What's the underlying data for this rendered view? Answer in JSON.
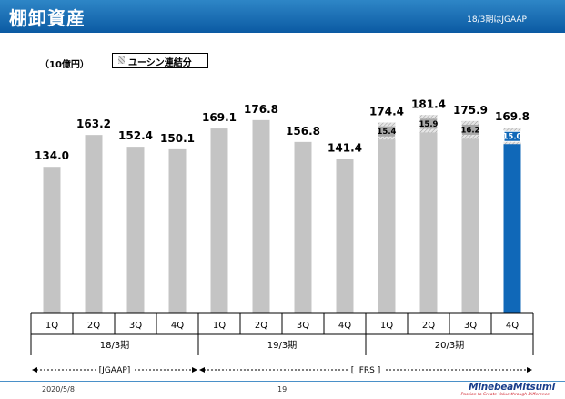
{
  "header": {
    "title": "棚卸資産",
    "note": "18/3期はJGAAP"
  },
  "unit_label": "（10億円）",
  "legend": {
    "label": "ユーシン連結分"
  },
  "colors": {
    "bar_gray": "#c4c4c4",
    "bar_highlight": "#1068b8",
    "header_blue": "#0b5aa3",
    "inner_box_gray": "#a8a8a8"
  },
  "chart_data": {
    "type": "bar",
    "categories": [
      "1Q",
      "2Q",
      "3Q",
      "4Q",
      "1Q",
      "2Q",
      "3Q",
      "4Q",
      "1Q",
      "2Q",
      "3Q",
      "4Q"
    ],
    "values": [
      134.0,
      163.2,
      152.4,
      150.1,
      169.1,
      176.8,
      156.8,
      141.4,
      174.4,
      181.4,
      175.9,
      169.8
    ],
    "value_labels": [
      "134.0",
      "163.2",
      "152.4",
      "150.1",
      "169.1",
      "176.8",
      "156.8",
      "141.4",
      "174.4",
      "181.4",
      "175.9",
      "169.8"
    ],
    "yushin_values": [
      null,
      null,
      null,
      null,
      null,
      null,
      null,
      null,
      15.4,
      15.9,
      16.2,
      15.0
    ],
    "yushin_labels": [
      "",
      "",
      "",
      "",
      "",
      "",
      "",
      "",
      "15.4",
      "15.9",
      "16.2",
      "15.0"
    ],
    "highlight_index": 11,
    "groups": [
      {
        "label": "18/3期",
        "start": 0,
        "end": 3
      },
      {
        "label": "19/3期",
        "start": 4,
        "end": 7
      },
      {
        "label": "20/3期",
        "start": 8,
        "end": 11
      }
    ],
    "standards": [
      {
        "label": "[JGAAP]",
        "start": 0,
        "end": 3
      },
      {
        "label": "[ IFRS ]",
        "start": 4,
        "end": 11
      }
    ],
    "ylim": [
      0,
      200
    ],
    "grid": false
  },
  "footer": {
    "date": "2020/5/8",
    "page": "19"
  },
  "logo": {
    "name": "MinebeaMitsumi",
    "tagline": "Passion to Create Value through Difference"
  }
}
